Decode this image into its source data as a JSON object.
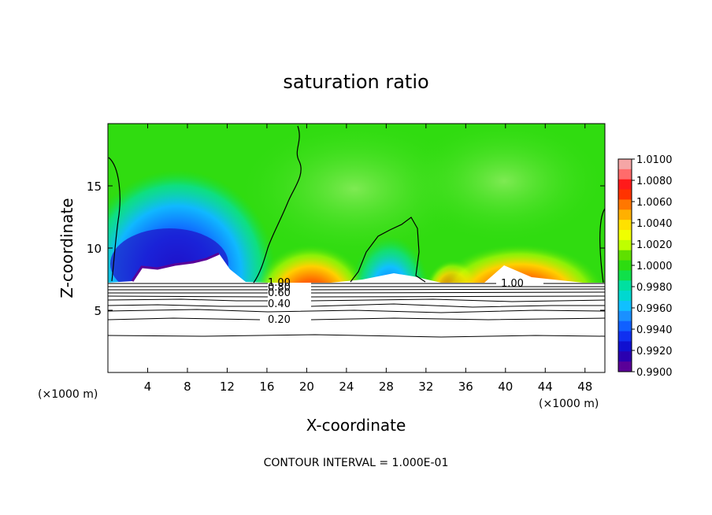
{
  "chart_data": {
    "type": "heatmap",
    "title": "saturation ratio",
    "xlabel": "X-coordinate",
    "ylabel": "Z-coordinate",
    "x_unit_left": "(×1000 m)",
    "x_unit_right": "(×1000 m)",
    "xlim": [
      0,
      50
    ],
    "ylim": [
      0,
      20
    ],
    "x_ticks": [
      "4",
      "8",
      "12",
      "16",
      "20",
      "24",
      "28",
      "32",
      "36",
      "40",
      "44",
      "48"
    ],
    "y_ticks": [
      "5",
      "10",
      "15"
    ],
    "colorbar": {
      "range": [
        0.99,
        1.01
      ],
      "labels": [
        "1.0100",
        "1.0080",
        "1.0060",
        "1.0040",
        "1.0020",
        "1.0000",
        "0.9980",
        "0.9960",
        "0.9940",
        "0.9920",
        "0.9900"
      ],
      "colors": [
        "#f5a6a6",
        "#ff6b6b",
        "#ff1a1a",
        "#ff3300",
        "#ff7700",
        "#ffb000",
        "#ffe100",
        "#f0ff00",
        "#bfff00",
        "#5fe000",
        "#2ddc10",
        "#10e04a",
        "#00e0a0",
        "#00d8d0",
        "#10c0ff",
        "#1a90ff",
        "#1060ff",
        "#1030f0",
        "#1010d0",
        "#2a00b0",
        "#5a0098"
      ]
    },
    "contour_labels": [
      "1.00",
      "0.80",
      "0.60",
      "0.40",
      "0.20",
      "1.00"
    ],
    "contour_interval": "CONTOUR INTERVAL = 1.000E-01"
  }
}
